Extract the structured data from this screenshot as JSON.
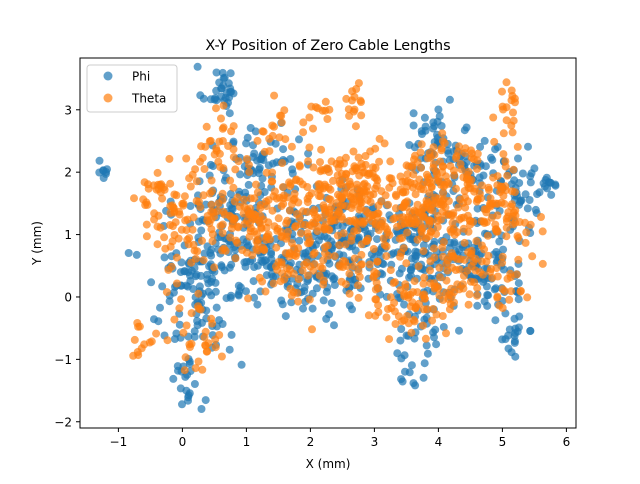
{
  "chart_data": {
    "type": "scatter",
    "title": "X-Y Position of Zero Cable Lengths",
    "xlabel": "X (mm)",
    "ylabel": "Y (mm)",
    "xlim": [
      -1.6,
      6.15
    ],
    "ylim": [
      -2.1,
      3.83
    ],
    "xticks": [
      -1,
      0,
      1,
      2,
      3,
      4,
      5,
      6
    ],
    "yticks": [
      -2,
      -1,
      0,
      1,
      2,
      3
    ],
    "grid": false,
    "legend_position": "top-left",
    "series": [
      {
        "name": "Phi",
        "color": "#1f77b4",
        "alpha": 0.7,
        "clusters": [
          [
            -1.25,
            2.1,
            0.06,
            0.1,
            8
          ],
          [
            0.6,
            3.3,
            0.15,
            0.2,
            30
          ],
          [
            -0.8,
            0.7,
            0.05,
            0.05,
            2
          ],
          [
            0.8,
            1.2,
            0.45,
            0.5,
            120
          ],
          [
            0.5,
            0.4,
            0.35,
            0.4,
            60
          ],
          [
            0.3,
            -0.4,
            0.3,
            0.4,
            40
          ],
          [
            0.1,
            -1.4,
            0.12,
            0.25,
            18
          ],
          [
            1.2,
            2.2,
            0.3,
            0.3,
            50
          ],
          [
            2.5,
            1.0,
            0.5,
            0.4,
            140
          ],
          [
            2.2,
            0.3,
            0.4,
            0.35,
            60
          ],
          [
            3.5,
            0.8,
            0.4,
            0.4,
            90
          ],
          [
            3.9,
            2.4,
            0.2,
            0.3,
            40
          ],
          [
            4.3,
            0.9,
            0.4,
            0.45,
            120
          ],
          [
            4.5,
            2.2,
            0.4,
            0.2,
            50
          ],
          [
            5.3,
            1.6,
            0.3,
            0.3,
            40
          ],
          [
            5.2,
            -0.6,
            0.15,
            0.2,
            20
          ],
          [
            5.7,
            1.8,
            0.1,
            0.05,
            8
          ],
          [
            3.8,
            -0.5,
            0.2,
            0.3,
            30
          ],
          [
            3.6,
            -1.3,
            0.1,
            0.15,
            8
          ],
          [
            4.8,
            0.2,
            0.3,
            0.3,
            40
          ],
          [
            1.5,
            0.5,
            0.3,
            0.3,
            40
          ],
          [
            -0.1,
            0.3,
            0.15,
            0.3,
            20
          ]
        ]
      },
      {
        "name": "Theta",
        "color": "#ff7f0e",
        "alpha": 0.7,
        "clusters": [
          [
            -0.4,
            1.6,
            0.2,
            0.2,
            25
          ],
          [
            -0.55,
            -0.6,
            0.1,
            0.15,
            12
          ],
          [
            0.0,
            1.1,
            0.25,
            0.5,
            60
          ],
          [
            0.2,
            -0.6,
            0.2,
            0.4,
            30
          ],
          [
            0.6,
            2.5,
            0.2,
            0.35,
            30
          ],
          [
            1.1,
            1.3,
            0.45,
            0.35,
            130
          ],
          [
            1.5,
            2.6,
            0.2,
            0.2,
            20
          ],
          [
            1.8,
            0.4,
            0.4,
            0.3,
            60
          ],
          [
            2.2,
            1.6,
            0.35,
            0.35,
            70
          ],
          [
            2.2,
            3.0,
            0.15,
            0.12,
            12
          ],
          [
            2.7,
            1.3,
            0.45,
            0.45,
            150
          ],
          [
            2.7,
            3.1,
            0.08,
            0.2,
            12
          ],
          [
            2.8,
            2.0,
            0.3,
            0.25,
            40
          ],
          [
            3.2,
            0.0,
            0.35,
            0.3,
            40
          ],
          [
            3.6,
            1.2,
            0.3,
            0.3,
            50
          ],
          [
            3.9,
            1.6,
            0.35,
            0.35,
            90
          ],
          [
            4.2,
            0.4,
            0.35,
            0.35,
            60
          ],
          [
            4.1,
            2.2,
            0.35,
            0.2,
            40
          ],
          [
            4.7,
            1.4,
            0.35,
            0.3,
            80
          ],
          [
            4.9,
            0.3,
            0.3,
            0.3,
            30
          ],
          [
            5.1,
            2.9,
            0.1,
            0.25,
            20
          ],
          [
            5.2,
            1.2,
            0.2,
            0.3,
            20
          ],
          [
            3.8,
            -0.2,
            0.25,
            0.25,
            30
          ]
        ]
      }
    ]
  }
}
